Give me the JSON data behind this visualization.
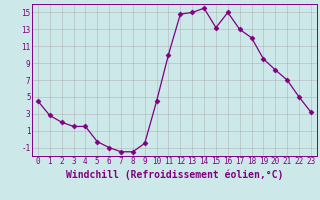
{
  "x": [
    0,
    1,
    2,
    3,
    4,
    5,
    6,
    7,
    8,
    9,
    10,
    11,
    12,
    13,
    14,
    15,
    16,
    17,
    18,
    19,
    20,
    21,
    22,
    23
  ],
  "y": [
    4.5,
    2.8,
    2.0,
    1.5,
    1.5,
    -0.3,
    -1.0,
    -1.5,
    -1.5,
    -0.5,
    4.5,
    10.0,
    14.8,
    15.0,
    15.5,
    13.2,
    15.0,
    13.0,
    12.0,
    9.5,
    8.2,
    7.0,
    5.0,
    3.2
  ],
  "line_color": "#800080",
  "marker": "D",
  "marker_size": 2.5,
  "bg_color": "#cce8e8",
  "grid_color": "#aaaaaa",
  "xlabel": "Windchill (Refroidissement éolien,°C)",
  "xlabel_fontsize": 7,
  "ytick_labels": [
    "-1",
    "1",
    "3",
    "5",
    "7",
    "9",
    "11",
    "13",
    "15"
  ],
  "ytick_vals": [
    -1,
    1,
    3,
    5,
    7,
    9,
    11,
    13,
    15
  ],
  "xtick_vals": [
    0,
    1,
    2,
    3,
    4,
    5,
    6,
    7,
    8,
    9,
    10,
    11,
    12,
    13,
    14,
    15,
    16,
    17,
    18,
    19,
    20,
    21,
    22,
    23
  ],
  "ylim": [
    -2.0,
    16.0
  ],
  "xlim": [
    -0.5,
    23.5
  ],
  "tick_fontsize": 5.5
}
